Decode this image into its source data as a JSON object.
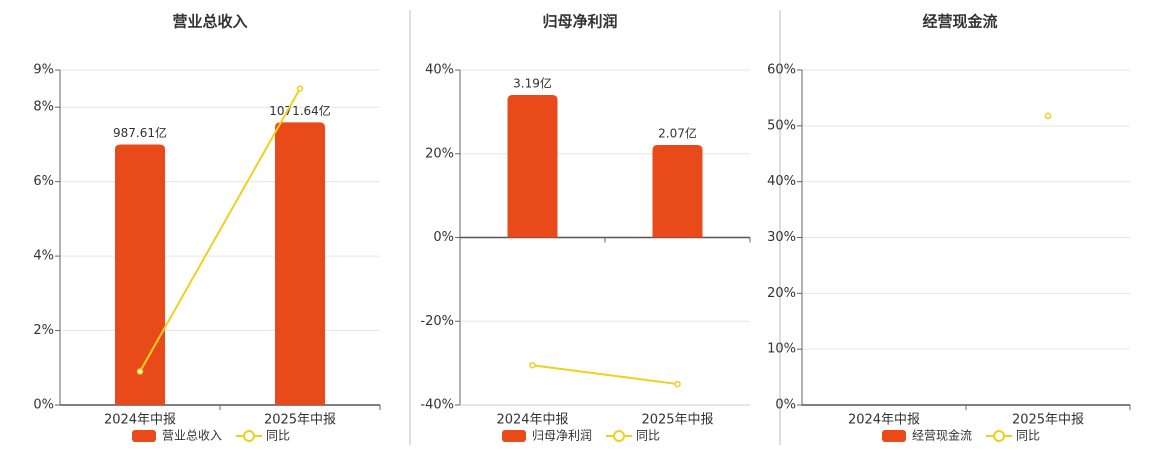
{
  "chart_data": [
    {
      "type": "bar",
      "title": "营业总收入",
      "categories": [
        "2024年中报",
        "2025年中报"
      ],
      "series": [
        {
          "name": "营业总收入",
          "color": "#e84a1a",
          "axis": "y2",
          "values": [
            987.61,
            1071.64
          ],
          "value_labels": [
            "987.61亿",
            "1071.64亿"
          ]
        },
        {
          "name": "同比",
          "color": "#f0d020",
          "type": "line",
          "values": [
            0.9,
            8.5
          ]
        }
      ],
      "ylim": [
        0,
        9
      ],
      "yticks": [
        {
          "value": 0,
          "label": "0%"
        },
        {
          "value": 2,
          "label": "2%"
        },
        {
          "value": 4,
          "label": "4%"
        },
        {
          "value": 6,
          "label": "6%"
        },
        {
          "value": 8,
          "label": "8%"
        },
        {
          "value": 9,
          "label": "9%"
        }
      ],
      "y2lim": [
        0,
        1270
      ],
      "grid": true
    },
    {
      "type": "bar",
      "title": "归母净利润",
      "categories": [
        "2024年中报",
        "2025年中报"
      ],
      "series": [
        {
          "name": "归母净利润",
          "color": "#e84a1a",
          "axis": "y2",
          "values": [
            3.19,
            2.07
          ],
          "value_labels": [
            "3.19亿",
            "2.07亿"
          ]
        },
        {
          "name": "同比",
          "color": "#f0d020",
          "type": "line",
          "values": [
            -30.5,
            -35
          ]
        }
      ],
      "ylim": [
        -40,
        40
      ],
      "yticks": [
        {
          "value": -40,
          "label": "-40%"
        },
        {
          "value": -20,
          "label": "-20%"
        },
        {
          "value": 0,
          "label": "0%"
        },
        {
          "value": 20,
          "label": "20%"
        },
        {
          "value": 40,
          "label": "40%"
        }
      ],
      "y2lim": [
        -3.75,
        3.75
      ],
      "grid": true
    },
    {
      "type": "bar",
      "title": "经营现金流",
      "categories": [
        "2024年中报",
        "2025年中报"
      ],
      "series": [
        {
          "name": "经营现金流",
          "color": "#e84a1a",
          "axis": "y2",
          "values": [
            null,
            null
          ]
        },
        {
          "name": "同比",
          "color": "#f0d020",
          "type": "line",
          "values": [
            null,
            51.8
          ]
        }
      ],
      "ylim": [
        0,
        60
      ],
      "yticks": [
        {
          "value": 0,
          "label": "0%"
        },
        {
          "value": 10,
          "label": "10%"
        },
        {
          "value": 20,
          "label": "20%"
        },
        {
          "value": 30,
          "label": "30%"
        },
        {
          "value": 40,
          "label": "40%"
        },
        {
          "value": 50,
          "label": "50%"
        },
        {
          "value": 60,
          "label": "60%"
        }
      ],
      "grid": true
    }
  ]
}
